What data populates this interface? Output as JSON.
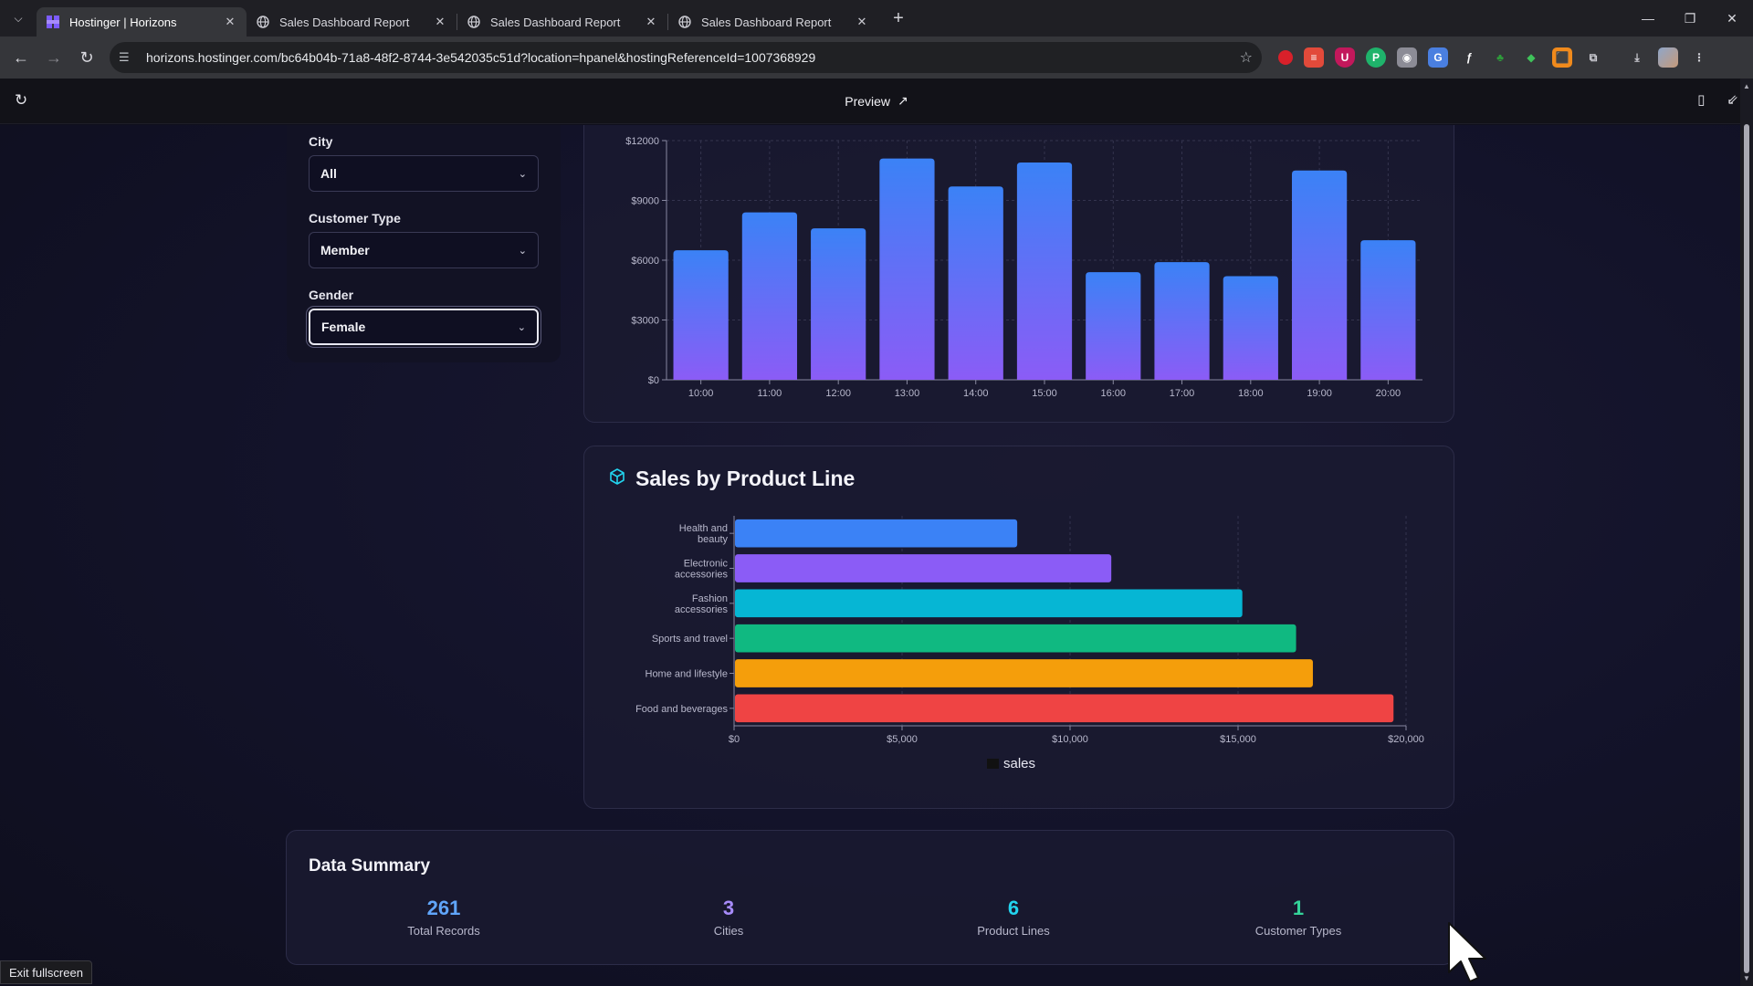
{
  "browser": {
    "tabs": [
      {
        "label": "Hostinger | Horizons",
        "active": true,
        "icon": "hostinger-icon"
      },
      {
        "label": "Sales Dashboard Report",
        "active": false,
        "icon": "globe-icon"
      },
      {
        "label": "Sales Dashboard Report",
        "active": false,
        "icon": "globe-icon"
      },
      {
        "label": "Sales Dashboard Report",
        "active": false,
        "icon": "globe-icon"
      }
    ],
    "url": "horizons.hostinger.com/bc64b04b-71a8-48f2-8744-3e542035c51d?location=hpanel&hostingReferenceId=1007368929"
  },
  "preview": {
    "title": "Preview"
  },
  "filters": {
    "city": {
      "label": "City",
      "value": "All"
    },
    "customer_type": {
      "label": "Customer Type",
      "value": "Member"
    },
    "gender": {
      "label": "Gender",
      "value": "Female"
    }
  },
  "hourly_chart": {
    "chart_data": {
      "type": "bar",
      "categories": [
        "10:00",
        "11:00",
        "12:00",
        "13:00",
        "14:00",
        "15:00",
        "16:00",
        "17:00",
        "18:00",
        "19:00",
        "20:00"
      ],
      "values": [
        6500,
        8400,
        7600,
        11100,
        9700,
        10900,
        5400,
        5900,
        5200,
        10500,
        7000
      ],
      "ylim": [
        0,
        12000
      ],
      "yticks": [
        "$0",
        "$3000",
        "$6000",
        "$9000",
        "$12000"
      ],
      "grid": true,
      "colors": {
        "top": "#3b82f6",
        "bottom": "#8b5cf6"
      }
    }
  },
  "product_chart": {
    "title": "Sales by Product Line",
    "icon": "cube-icon",
    "chart_data": {
      "type": "bar",
      "orientation": "horizontal",
      "categories": [
        [
          "Health and",
          "beauty"
        ],
        [
          "Electronic",
          "accessories"
        ],
        [
          "Fashion",
          "accessories"
        ],
        [
          "Sports and travel"
        ],
        [
          "Home and lifestyle"
        ],
        [
          "Food and beverages"
        ]
      ],
      "values": [
        8400,
        11200,
        15100,
        16700,
        17200,
        19600
      ],
      "bar_colors": [
        "#3b82f6",
        "#8b5cf6",
        "#06b6d4",
        "#10b981",
        "#f59e0b",
        "#ef4444"
      ],
      "xlim": [
        0,
        20000
      ],
      "xticks": [
        "$0",
        "$5,000",
        "$10,000",
        "$15,000",
        "$20,000"
      ],
      "legend": {
        "label": "sales",
        "position": "bottom"
      },
      "grid": true
    }
  },
  "summary": {
    "title": "Data Summary",
    "stats": [
      {
        "value": "261",
        "label": "Total Records",
        "color": "#60a5fa"
      },
      {
        "value": "3",
        "label": "Cities",
        "color": "#a78bfa"
      },
      {
        "value": "6",
        "label": "Product Lines",
        "color": "#22d3ee"
      },
      {
        "value": "1",
        "label": "Customer Types",
        "color": "#34d399"
      }
    ]
  },
  "exit_fullscreen": "Exit fullscreen"
}
